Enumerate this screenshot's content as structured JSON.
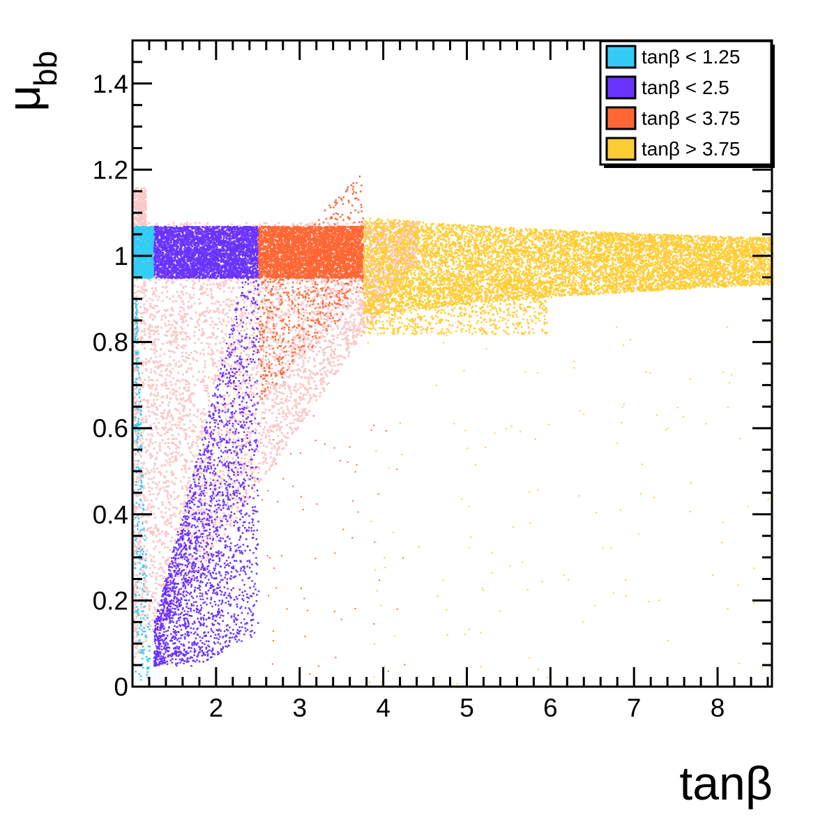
{
  "chart_data": {
    "type": "scatter",
    "xlabel": "tanβ",
    "ylabel_main": "μ",
    "ylabel_sub": "bb",
    "xlim": [
      1.0,
      8.65
    ],
    "ylim": [
      0,
      1.5
    ],
    "x_ticks": [
      2,
      3,
      4,
      5,
      6,
      7,
      8
    ],
    "y_ticks": [
      0,
      0.2,
      0.4,
      0.6,
      0.8,
      1,
      1.2,
      1.4
    ],
    "y_tick_labels": [
      "0",
      "0.2",
      "0.4",
      "0.6",
      "0.8",
      "1",
      "1.2",
      "1.4"
    ],
    "legend_position": "top-right",
    "background_color": "#f9c8c8",
    "series": [
      {
        "name": "tanβ < 1.25",
        "color": "#33ccf5",
        "x_range": [
          1.0,
          1.25
        ],
        "band": [
          0.95,
          1.07
        ]
      },
      {
        "name": "tanβ < 2.5",
        "color": "#6a33ff",
        "x_range": [
          1.25,
          2.5
        ],
        "band": [
          0.95,
          1.07
        ]
      },
      {
        "name": "tanβ < 3.75",
        "color": "#ff6633",
        "x_range": [
          2.5,
          3.75
        ],
        "band": [
          0.95,
          1.07
        ]
      },
      {
        "name": "tanβ > 3.75",
        "color": "#ffcc33",
        "x_range": [
          3.75,
          8.65
        ],
        "band": [
          0.93,
          1.05
        ]
      }
    ]
  }
}
